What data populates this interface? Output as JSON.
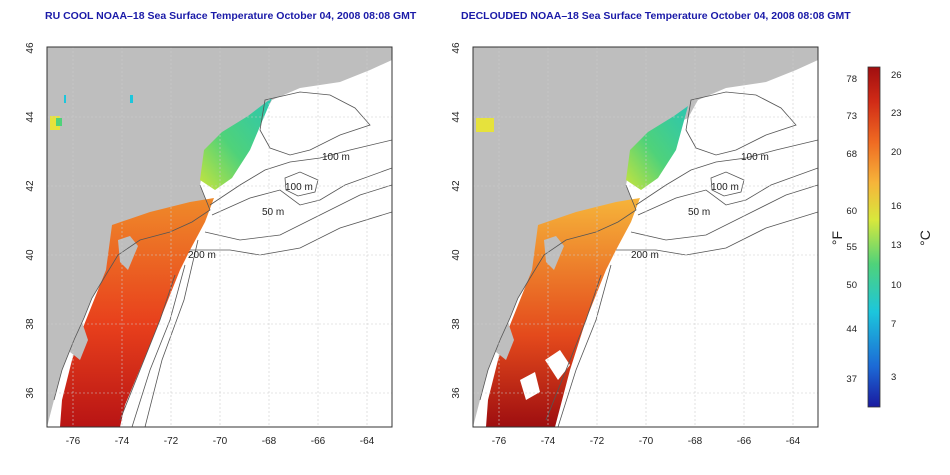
{
  "titles": {
    "left": "RU COOL NOAA–18 Sea Surface Temperature October 04, 2008 08:08 GMT",
    "right": "DECLOUDED NOAA–18 Sea Surface Temperature October 04, 2008 08:08 GMT"
  },
  "axes": {
    "x_ticks": [
      "-76",
      "-74",
      "-72",
      "-70",
      "-68",
      "-66",
      "-64"
    ],
    "y_ticks": [
      "46",
      "44",
      "42",
      "40",
      "38",
      "36"
    ]
  },
  "contour_labels": {
    "d100a": "100 m",
    "d100b": "100 m",
    "d50a": "50 m",
    "d50b": "50 m",
    "d200": "200 m"
  },
  "colorbar": {
    "fahrenheit_label": "°F",
    "celsius_label": "°C",
    "fahrenheit_ticks": [
      "78",
      "73",
      "68",
      "60",
      "55",
      "50",
      "44",
      "37"
    ],
    "celsius_ticks": [
      "26",
      "23",
      "20",
      "16",
      "13",
      "10",
      "7",
      "3"
    ]
  },
  "colors": {
    "land": "#bebebe",
    "title": "#1a1aa8",
    "warm": "#e8401c",
    "hot": "#b81414",
    "mid": "#f6b43a",
    "cool": "#4fd27a",
    "cold": "#1c6ad6",
    "contour": "#555555",
    "grid": "#cccccc"
  }
}
